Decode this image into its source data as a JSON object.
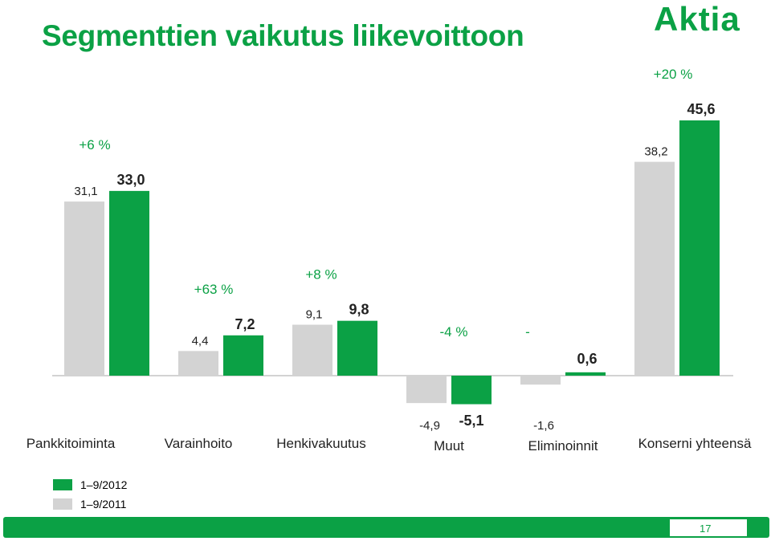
{
  "title": "Segmenttien vaikutus liikevoittoon",
  "logo_text": "Aktia",
  "page_number": "17",
  "colors": {
    "accent": "#0ba145",
    "series_2012": "#0ba145",
    "series_2011": "#d3d3d3"
  },
  "legend": [
    {
      "label": "1–9/2012",
      "color": "#0ba145"
    },
    {
      "label": "1–9/2011",
      "color": "#d3d3d3"
    }
  ],
  "chart_data": {
    "type": "bar",
    "categories": [
      "Pankkitoiminta",
      "Varainhoito",
      "Henkivakuutus",
      "Muut",
      "Eliminoinnit",
      "Konserni yhteensä"
    ],
    "series": [
      {
        "name": "1–9/2011",
        "values": [
          31.1,
          4.4,
          9.1,
          -4.9,
          -1.6,
          38.2
        ],
        "labels": [
          "31,1",
          "4,4",
          "9,1",
          "-4,9",
          "-1,6",
          "38,2"
        ]
      },
      {
        "name": "1–9/2012",
        "values": [
          33.0,
          7.2,
          9.8,
          -5.1,
          0.6,
          45.6
        ],
        "labels": [
          "33,0",
          "7,2",
          "9,8",
          "-5,1",
          "0,6",
          "45,6"
        ]
      }
    ],
    "changes": [
      "+6 %",
      "+63 %",
      "+8 %",
      "-4 %",
      "-",
      "+20 %"
    ],
    "grid": false,
    "legend_position": "bottom-left"
  }
}
